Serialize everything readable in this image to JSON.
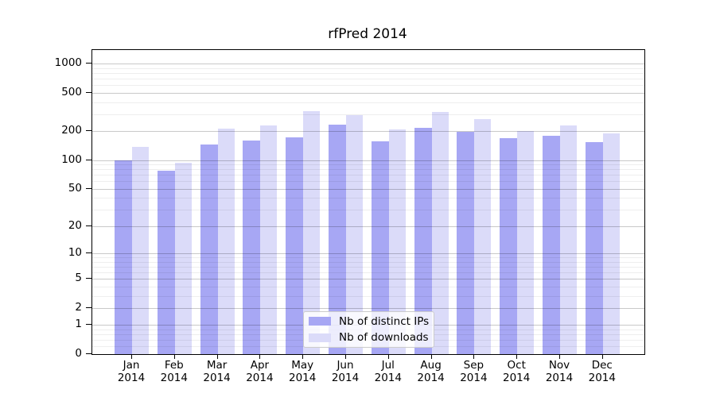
{
  "title": "rfPred 2014",
  "legend": {
    "items": [
      {
        "label": "Nb of distinct IPs"
      },
      {
        "label": "Nb of downloads"
      }
    ]
  },
  "colors": {
    "distinct_ips_bar": "#a7a7f4",
    "downloads_bar": "#dbdbf9",
    "axis_line": "#000000",
    "major_grid": "rgba(0,0,0,0.21)",
    "minor_grid": "rgba(0,0,0,0.065)",
    "legend_border": "#cccccc"
  },
  "chart_data": {
    "type": "bar",
    "title": "rfPred 2014",
    "xlabel": "",
    "ylabel": "",
    "y_scale": "log1p",
    "ylim": [
      0,
      1385
    ],
    "grid": true,
    "legend_position": "lower center",
    "categories": [
      "Jan",
      "Feb",
      "Mar",
      "Apr",
      "May",
      "Jun",
      "Jul",
      "Aug",
      "Sep",
      "Oct",
      "Nov",
      "Dec"
    ],
    "category_year": "2014",
    "y_major_ticks": [
      0,
      1,
      2,
      5,
      10,
      20,
      50,
      100,
      200,
      500,
      1000
    ],
    "y_minor_ticks": [
      0.2,
      0.4,
      0.6,
      0.8,
      3,
      4,
      6,
      7,
      8,
      9,
      30,
      40,
      60,
      70,
      80,
      90,
      300,
      400,
      600,
      700,
      800,
      900
    ],
    "series": [
      {
        "name": "Nb of distinct IPs",
        "color": "#a7a7f4",
        "values": [
          100,
          78,
          145,
          160,
          173,
          235,
          157,
          218,
          198,
          168,
          181,
          155
        ]
      },
      {
        "name": "Nb of downloads",
        "color": "#dbdbf9",
        "values": [
          138,
          94,
          213,
          230,
          322,
          293,
          208,
          317,
          268,
          202,
          230,
          189
        ]
      }
    ]
  }
}
